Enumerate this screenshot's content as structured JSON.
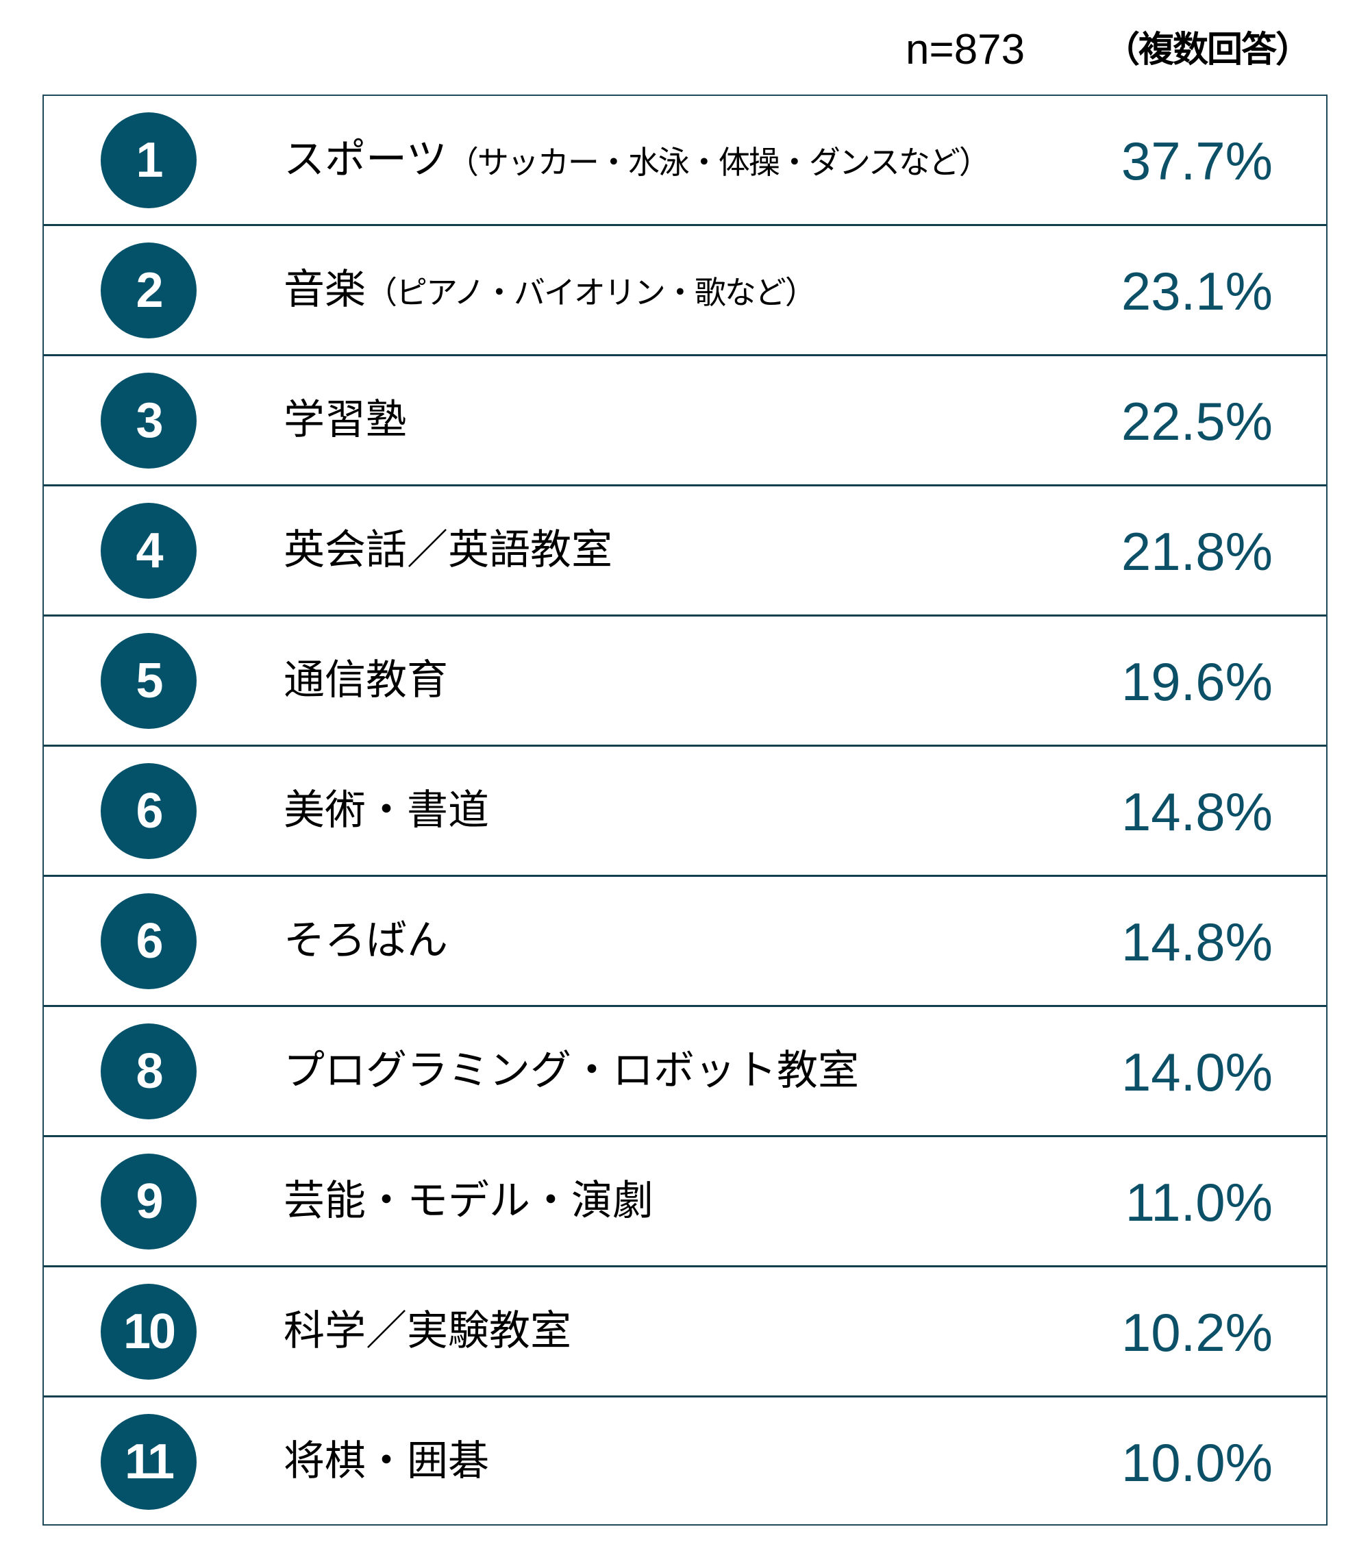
{
  "header": {
    "sample_size": "n=873",
    "note": "（複数回答）"
  },
  "colors": {
    "accent": "#04516a",
    "percent_text": "#0c5068",
    "border": "#1e4a5c"
  },
  "rows": [
    {
      "rank": "1",
      "label": "スポーツ",
      "sub": "（サッカー・水泳・体操・ダンスなど）",
      "value": "37.7%"
    },
    {
      "rank": "2",
      "label": "音楽",
      "sub": "（ピアノ・バイオリン・歌など）",
      "value": "23.1%"
    },
    {
      "rank": "3",
      "label": "学習塾",
      "sub": "",
      "value": "22.5%"
    },
    {
      "rank": "4",
      "label": "英会話／英語教室",
      "sub": "",
      "value": "21.8%"
    },
    {
      "rank": "5",
      "label": "通信教育",
      "sub": "",
      "value": "19.6%"
    },
    {
      "rank": "6",
      "label": "美術・書道",
      "sub": "",
      "value": "14.8%"
    },
    {
      "rank": "6",
      "label": "そろばん",
      "sub": "",
      "value": "14.8%"
    },
    {
      "rank": "8",
      "label": "プログラミング・ロボット教室",
      "sub": "",
      "value": "14.0%"
    },
    {
      "rank": "9",
      "label": "芸能・モデル・演劇",
      "sub": "",
      "value": "11.0%"
    },
    {
      "rank": "10",
      "label": "科学／実験教室",
      "sub": "",
      "value": "10.2%"
    },
    {
      "rank": "11",
      "label": "将棋・囲碁",
      "sub": "",
      "value": "10.0%"
    }
  ],
  "chart_data": {
    "type": "table",
    "title": "",
    "note": "n=873 （複数回答）",
    "columns": [
      "rank",
      "category",
      "percent"
    ],
    "categories": [
      "スポーツ（サッカー・水泳・体操・ダンスなど）",
      "音楽（ピアノ・バイオリン・歌など）",
      "学習塾",
      "英会話／英語教室",
      "通信教育",
      "美術・書道",
      "そろばん",
      "プログラミング・ロボット教室",
      "芸能・モデル・演劇",
      "科学／実験教室",
      "将棋・囲碁"
    ],
    "ranks": [
      1,
      2,
      3,
      4,
      5,
      6,
      6,
      8,
      9,
      10,
      11
    ],
    "values": [
      37.7,
      23.1,
      22.5,
      21.8,
      19.6,
      14.8,
      14.8,
      14.0,
      11.0,
      10.2,
      10.0
    ],
    "unit": "%"
  }
}
